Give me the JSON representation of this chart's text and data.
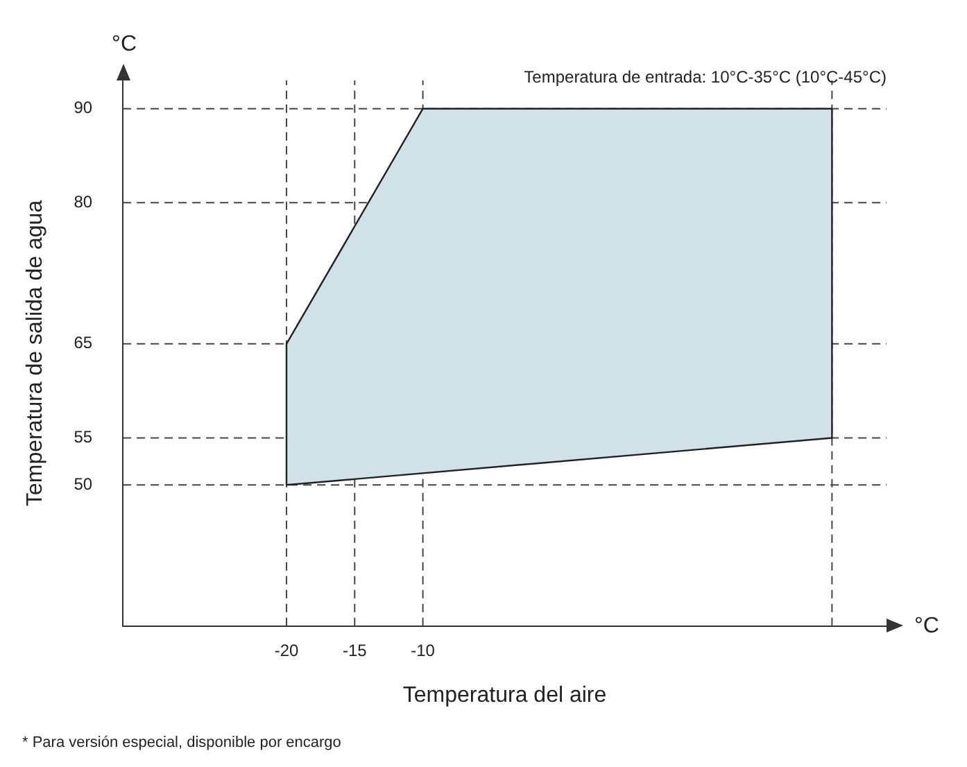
{
  "chart_data": {
    "type": "area",
    "xlabel": "Temperatura del aire",
    "ylabel": "Temperatura de salida de agua",
    "annotations": [
      "Temperatura de entrada: 10°C-35°C (10°C-45°C)",
      "* Para versión especial, disponible por encargo",
      "°C",
      "°C"
    ],
    "series": [
      {
        "color": "#d0e2e8",
        "x": [
          -20,
          -20,
          -10,
          20,
          20,
          -20
        ],
        "values": [
          50,
          65,
          90,
          90,
          55,
          50
        ]
      }
    ],
    "xlim": [
      -32,
      24
    ],
    "xticks": [
      -20,
      -15,
      -10,
      {
        "value": 20,
        "label": null
      }
    ],
    "ylim": [
      35,
      93
    ],
    "yticks": [
      50,
      55,
      65,
      80,
      90
    ],
    "grid": true,
    "legend": false
  }
}
